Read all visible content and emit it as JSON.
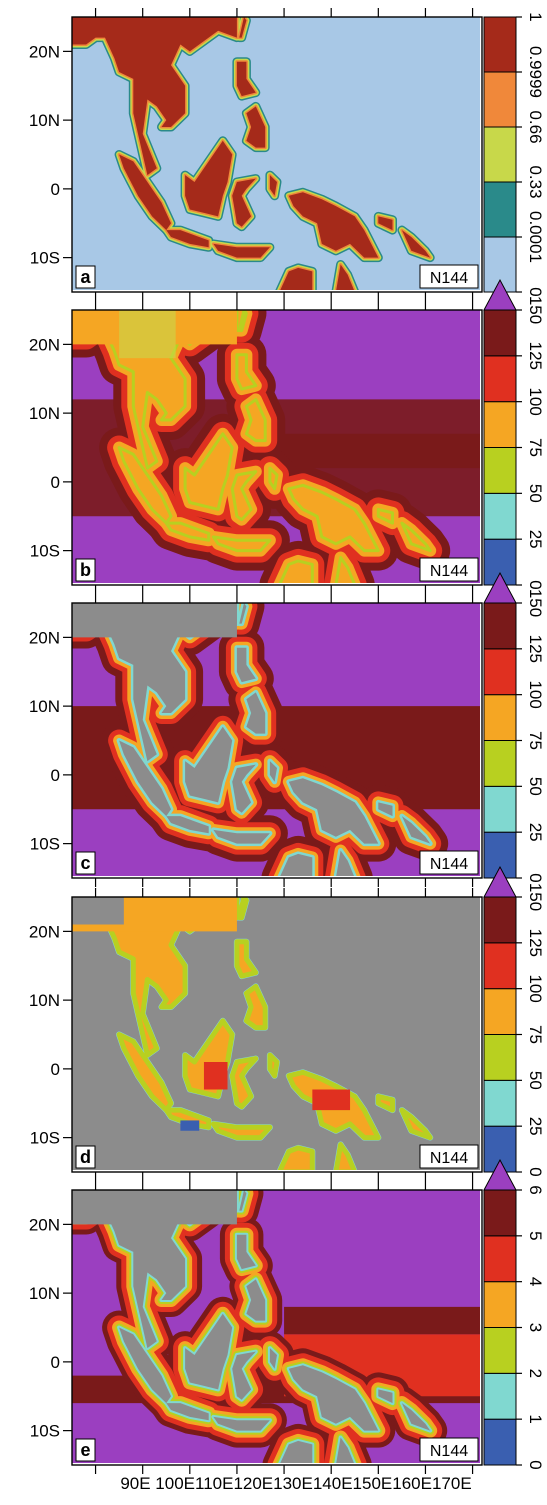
{
  "figure": {
    "lat_ticks": [
      "20N",
      "10N",
      "0",
      "10S"
    ],
    "lon_ticks": [
      "90E",
      "100E",
      "110E",
      "120E",
      "130E",
      "140E",
      "150E",
      "160E",
      "170E"
    ],
    "lon_label_line": "90E 100E110E120E130E140E150E160E170E"
  },
  "colors": {
    "ocean_blue": "#a8c8e6",
    "land_red": "#8b1a1a",
    "teal": "#2a8a8a",
    "yellow_green": "#c8d84a",
    "orange": "#f0883a",
    "purple": "#9b3fc0",
    "gray": "#8c8c8c",
    "c0": "#3a5fb0",
    "c1": "#80d8d0",
    "c2": "#b8d020",
    "c3": "#f5a623",
    "c4": "#e03020",
    "c5": "#7a1a1a"
  },
  "panels": [
    {
      "letter": "a",
      "resolution": "N144",
      "colorbar": {
        "labels": [
          "0",
          "0.0001",
          "0.33",
          "0.66",
          "0.9999",
          "1"
        ],
        "colors": [
          "#a8c8e6",
          "#2a8a8a",
          "#c8d84a",
          "#f0883a",
          "#a52a1a"
        ],
        "extend_top": false
      },
      "background": "#a8c8e6",
      "theme": "land_fraction"
    },
    {
      "letter": "b",
      "resolution": "N144",
      "colorbar": {
        "labels": [
          "0",
          "25",
          "50",
          "75",
          "100",
          "125",
          "150"
        ],
        "colors": [
          "#3a5fb0",
          "#80d8d0",
          "#b8d020",
          "#f5a623",
          "#e03020",
          "#7a1a1a"
        ],
        "extend_top": true,
        "extend_color": "#9b3fc0"
      },
      "background": "#9b3fc0",
      "theme": "distance_land"
    },
    {
      "letter": "c",
      "resolution": "N144",
      "colorbar": {
        "labels": [
          "0",
          "25",
          "50",
          "75",
          "100",
          "125",
          "150"
        ],
        "colors": [
          "#3a5fb0",
          "#80d8d0",
          "#b8d020",
          "#f5a623",
          "#e03020",
          "#7a1a1a"
        ],
        "extend_top": true,
        "extend_color": "#9b3fc0"
      },
      "background": "#9b3fc0",
      "theme": "distance_ocean_gray_land"
    },
    {
      "letter": "d",
      "resolution": "N144",
      "colorbar": {
        "labels": [
          "0",
          "25",
          "50",
          "75",
          "100",
          "125",
          "150"
        ],
        "colors": [
          "#3a5fb0",
          "#80d8d0",
          "#b8d020",
          "#f5a623",
          "#e03020",
          "#7a1a1a"
        ],
        "extend_top": true,
        "extend_color": "#9b3fc0"
      },
      "background": "#8c8c8c",
      "theme": "land_distance_gray_ocean"
    },
    {
      "letter": "e",
      "resolution": "N144",
      "colorbar": {
        "labels": [
          "0",
          "1",
          "2",
          "3",
          "4",
          "5",
          "6"
        ],
        "colors": [
          "#3a5fb0",
          "#80d8d0",
          "#b8d020",
          "#f5a623",
          "#e03020",
          "#7a1a1a"
        ],
        "extend_top": true,
        "extend_color": "#9b3fc0"
      },
      "background": "#9b3fc0",
      "theme": "index_ocean"
    }
  ]
}
